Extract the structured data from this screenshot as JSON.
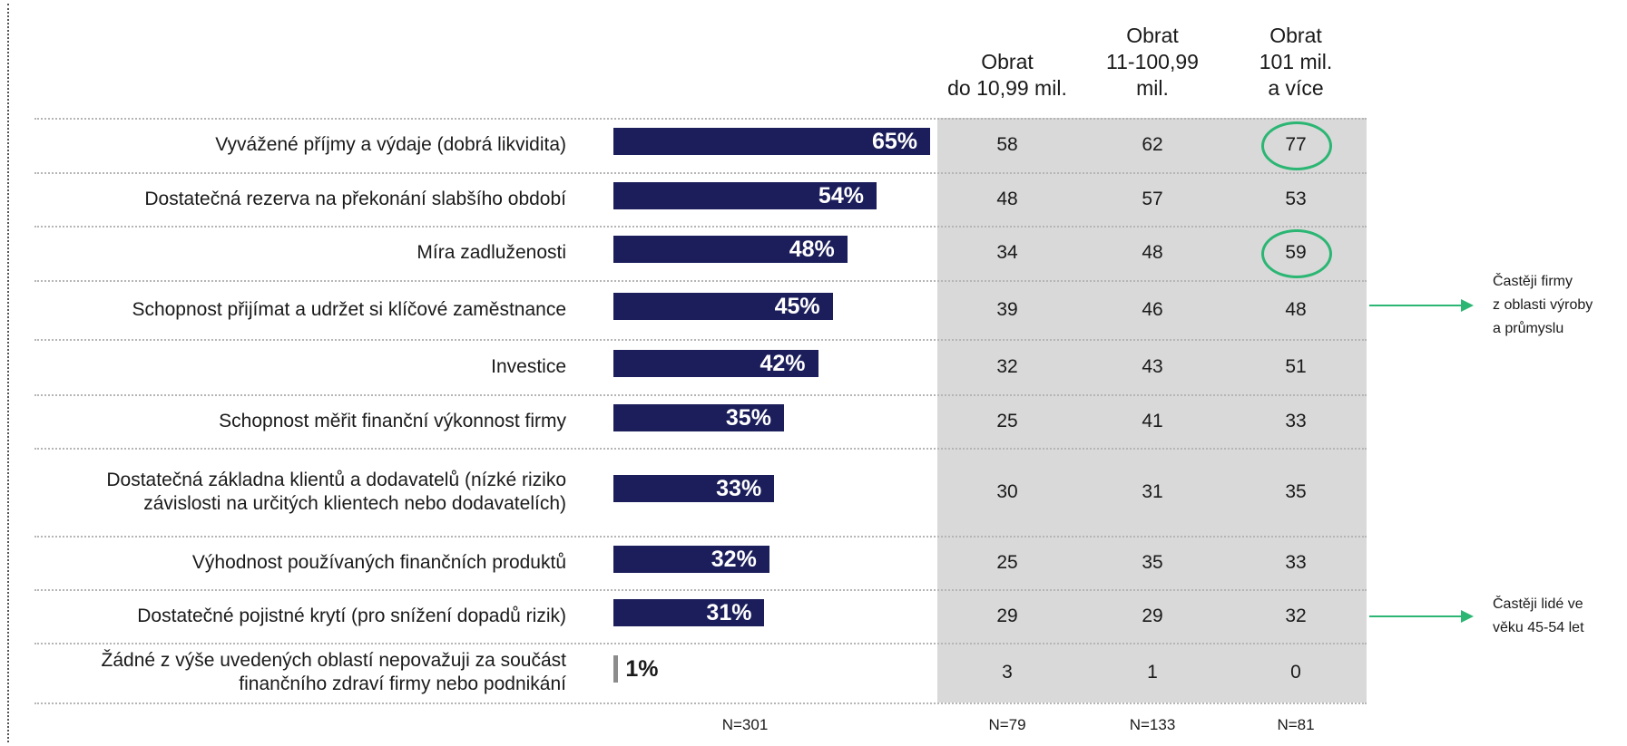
{
  "chart_data": {
    "type": "bar",
    "orientation": "horizontal",
    "categories": [
      "Vyvážené příjmy a výdaje (dobrá likvidita)",
      "Dostatečná rezerva na překonání slabšího období",
      "Míra zadluženosti",
      "Schopnost přijímat a udržet si klíčové zaměstnance",
      "Investice",
      "Schopnost měřit finanční výkonnost firmy",
      "Dostatečná základna klientů a dodavatelů (nízké riziko závislosti na určitých klientech nebo dodavatelích)",
      "Výhodnost používaných finančních produktů",
      "Dostatečné pojistné krytí (pro snížení dopadů rizik)",
      "Žádné z výše uvedených oblastí nepovažuji za součást finančního zdraví firmy nebo podnikání"
    ],
    "values": [
      65,
      54,
      48,
      45,
      42,
      35,
      33,
      32,
      31,
      1
    ],
    "value_labels": [
      "65%",
      "54%",
      "48%",
      "45%",
      "42%",
      "35%",
      "33%",
      "32%",
      "31%",
      "1%"
    ],
    "colors": [
      "#1b1e5b",
      "#1b1e5b",
      "#1b1e5b",
      "#1b1e5b",
      "#1b1e5b",
      "#1b1e5b",
      "#1b1e5b",
      "#1b1e5b",
      "#1b1e5b",
      "#8c8c8c"
    ],
    "n_label": "N=301"
  },
  "table": {
    "columns": [
      {
        "header": "Obrat\ndo 10,99 mil.",
        "values": [
          58,
          48,
          34,
          39,
          32,
          25,
          30,
          25,
          29,
          3
        ],
        "n_label": "N=79"
      },
      {
        "header": "Obrat\n11-100,99\nmil.",
        "values": [
          62,
          57,
          48,
          46,
          43,
          41,
          31,
          35,
          29,
          1
        ],
        "n_label": "N=133"
      },
      {
        "header": "Obrat\n101 mil.\na více",
        "values": [
          77,
          53,
          59,
          48,
          51,
          33,
          35,
          33,
          32,
          0
        ],
        "n_label": "N=81",
        "circled": [
          0,
          2
        ]
      }
    ],
    "background": "#d9d9d9",
    "circle_color": "#2bb673"
  },
  "annotations": [
    {
      "text": "Častěji firmy\nz oblasti výroby\na průmyslu"
    },
    {
      "text": "Častěji lidé ve\nvěku 45-54 let"
    }
  ]
}
